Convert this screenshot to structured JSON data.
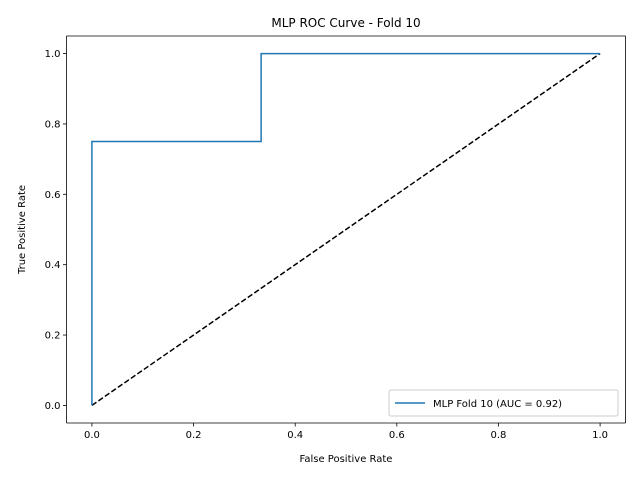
{
  "chart_data": {
    "type": "line",
    "title": "MLP ROC Curve - Fold 10",
    "xlabel": "False Positive Rate",
    "ylabel": "True Positive Rate",
    "xlim": [
      -0.05,
      1.05
    ],
    "ylim": [
      -0.05,
      1.05
    ],
    "xticks": [
      0.0,
      0.2,
      0.4,
      0.6,
      0.8,
      1.0
    ],
    "yticks": [
      0.0,
      0.2,
      0.4,
      0.6,
      0.8,
      1.0
    ],
    "xtick_labels": [
      "0.0",
      "0.2",
      "0.4",
      "0.6",
      "0.8",
      "1.0"
    ],
    "ytick_labels": [
      "0.0",
      "0.2",
      "0.4",
      "0.6",
      "0.8",
      "1.0"
    ],
    "grid": false,
    "legend_position": "lower right",
    "series": [
      {
        "name": "MLP Fold 10 (AUC = 0.92)",
        "color": "#1f77b4",
        "style": "solid",
        "x": [
          0.0,
          0.0,
          0.333,
          0.333,
          1.0
        ],
        "y": [
          0.0,
          0.75,
          0.75,
          1.0,
          1.0
        ]
      },
      {
        "color": "#000000",
        "style": "dashed",
        "x": [
          0.0,
          1.0
        ],
        "y": [
          0.0,
          1.0
        ]
      }
    ]
  }
}
